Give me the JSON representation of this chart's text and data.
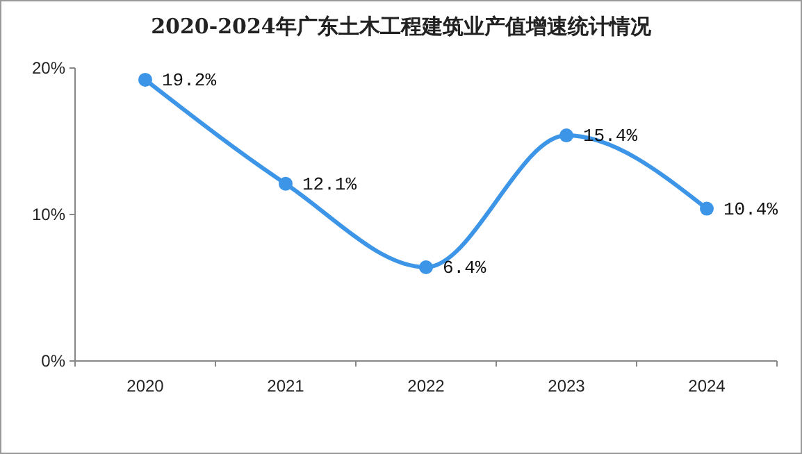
{
  "chart_data": {
    "type": "line",
    "title": "2020-2024年广东土木工程建筑业产值增速统计情况",
    "categories": [
      "2020",
      "2021",
      "2022",
      "2023",
      "2024"
    ],
    "series": [
      {
        "color": "#3d95e8",
        "values": [
          19.2,
          12.1,
          6.4,
          15.4,
          10.4
        ],
        "value_labels": [
          "19.2%",
          "12.1%",
          "6.4%",
          "15.4%",
          "10.4%"
        ]
      }
    ],
    "ylim": [
      0,
      20
    ],
    "yticks": [
      {
        "value": 0,
        "label": "0%"
      },
      {
        "value": 10,
        "label": "10%"
      },
      {
        "value": 20,
        "label": "20%"
      }
    ],
    "grid": false,
    "marker": "circle",
    "line_style": "solid"
  }
}
